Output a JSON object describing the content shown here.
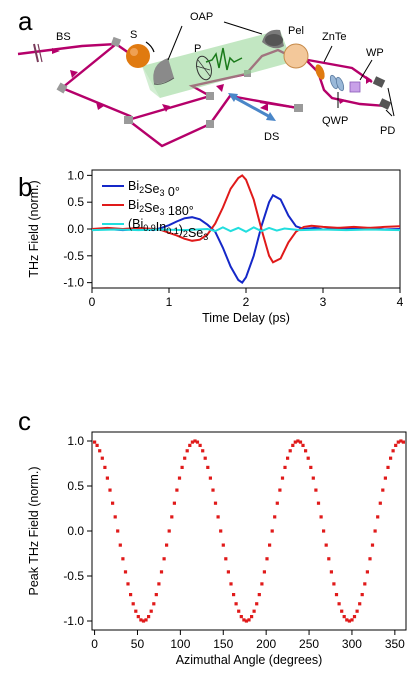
{
  "panel_labels": {
    "a": "a",
    "b": "b",
    "c": "c"
  },
  "diagram": {
    "labels": {
      "bs": "BS",
      "s": "S",
      "oap": "OAP",
      "p": "P",
      "pel": "Pel",
      "znte": "ZnTe",
      "wp": "WP",
      "ds": "DS",
      "qwp": "QWP",
      "pd": "PD"
    },
    "colors": {
      "beam": "#b5006a",
      "sample": "#e07a10",
      "thz": "#6ec46e",
      "stage": "#4a86c8",
      "pellicle": "#f3c89a"
    }
  },
  "chart_data": [
    {
      "type": "line",
      "xlabel": "Time Delay (ps)",
      "ylabel": "THz Field (norm.)",
      "xlim": [
        0,
        4
      ],
      "ylim": [
        -1.1,
        1.1
      ],
      "xticks": [
        "0",
        "1",
        "2",
        "3",
        "4"
      ],
      "yticks": [
        "1.0",
        "0.5",
        "0.0",
        "-0.5",
        "-1.0"
      ],
      "legend_position": "top-left",
      "series": [
        {
          "name": "Bi2Se3 0°",
          "color": "#1528c8",
          "points": [
            [
              0,
              -0.02
            ],
            [
              0.2,
              0.0
            ],
            [
              0.4,
              -0.02
            ],
            [
              0.6,
              0.0
            ],
            [
              0.8,
              -0.02
            ],
            [
              0.9,
              0.02
            ],
            [
              1.0,
              0.07
            ],
            [
              1.1,
              0.14
            ],
            [
              1.2,
              0.2
            ],
            [
              1.3,
              0.22
            ],
            [
              1.4,
              0.18
            ],
            [
              1.5,
              0.08
            ],
            [
              1.6,
              -0.05
            ],
            [
              1.7,
              -0.35
            ],
            [
              1.8,
              -0.7
            ],
            [
              1.9,
              -0.95
            ],
            [
              1.95,
              -1.0
            ],
            [
              2.0,
              -0.9
            ],
            [
              2.1,
              -0.5
            ],
            [
              2.2,
              0.05
            ],
            [
              2.3,
              0.5
            ],
            [
              2.35,
              0.63
            ],
            [
              2.45,
              0.55
            ],
            [
              2.55,
              0.25
            ],
            [
              2.65,
              0.05
            ],
            [
              2.75,
              0.0
            ],
            [
              2.9,
              0.02
            ],
            [
              3.0,
              -0.01
            ],
            [
              3.2,
              0.02
            ],
            [
              3.4,
              0.0
            ],
            [
              3.6,
              0.02
            ],
            [
              3.8,
              -0.01
            ],
            [
              4.0,
              0.0
            ]
          ]
        },
        {
          "name": "Bi2Se3 180°",
          "color": "#e01a1a",
          "points": [
            [
              0,
              0.0
            ],
            [
              0.2,
              0.02
            ],
            [
              0.4,
              0.0
            ],
            [
              0.6,
              0.02
            ],
            [
              0.8,
              0.0
            ],
            [
              0.9,
              -0.02
            ],
            [
              1.0,
              -0.07
            ],
            [
              1.1,
              -0.12
            ],
            [
              1.2,
              -0.18
            ],
            [
              1.3,
              -0.22
            ],
            [
              1.4,
              -0.2
            ],
            [
              1.5,
              -0.1
            ],
            [
              1.6,
              0.1
            ],
            [
              1.7,
              0.4
            ],
            [
              1.8,
              0.75
            ],
            [
              1.9,
              0.95
            ],
            [
              1.95,
              1.0
            ],
            [
              2.0,
              0.92
            ],
            [
              2.1,
              0.55
            ],
            [
              2.2,
              0.0
            ],
            [
              2.3,
              -0.5
            ],
            [
              2.35,
              -0.62
            ],
            [
              2.45,
              -0.55
            ],
            [
              2.55,
              -0.25
            ],
            [
              2.65,
              -0.05
            ],
            [
              2.75,
              0.04
            ],
            [
              2.85,
              0.06
            ],
            [
              3.0,
              0.04
            ],
            [
              3.2,
              0.02
            ],
            [
              3.4,
              0.04
            ],
            [
              3.6,
              0.02
            ],
            [
              3.8,
              0.04
            ],
            [
              4.0,
              0.05
            ]
          ]
        },
        {
          "name": "(Bi0.9In0.1)2Se3",
          "color": "#22dede",
          "points": [
            [
              0,
              -0.02
            ],
            [
              0.3,
              -0.01
            ],
            [
              0.6,
              -0.02
            ],
            [
              0.9,
              -0.01
            ],
            [
              1.2,
              -0.02
            ],
            [
              1.5,
              0.0
            ],
            [
              1.6,
              -0.04
            ],
            [
              1.7,
              0.03
            ],
            [
              1.8,
              -0.04
            ],
            [
              1.9,
              0.02
            ],
            [
              2.0,
              -0.05
            ],
            [
              2.1,
              0.03
            ],
            [
              2.2,
              -0.04
            ],
            [
              2.3,
              0.02
            ],
            [
              2.4,
              -0.03
            ],
            [
              2.5,
              0.01
            ],
            [
              2.7,
              -0.02
            ],
            [
              3.0,
              -0.01
            ],
            [
              3.3,
              -0.02
            ],
            [
              3.6,
              -0.01
            ],
            [
              4.0,
              -0.02
            ]
          ]
        }
      ]
    },
    {
      "type": "scatter",
      "xlabel": "Azimuthal Angle (degrees)",
      "ylabel": "Peak THz Field (norm.)",
      "xlim": [
        -3,
        363
      ],
      "ylim": [
        -1.1,
        1.1
      ],
      "xticks": [
        "0",
        "50",
        "100",
        "150",
        "200",
        "250",
        "300",
        "350"
      ],
      "yticks": [
        "1.0",
        "0.5",
        "0.0",
        "-0.5",
        "-1.0"
      ],
      "color": "#e01a1a",
      "model": "y = cos(3*(angle - 117))",
      "angle_start": 0,
      "angle_end": 360,
      "angle_step": 3
    }
  ]
}
